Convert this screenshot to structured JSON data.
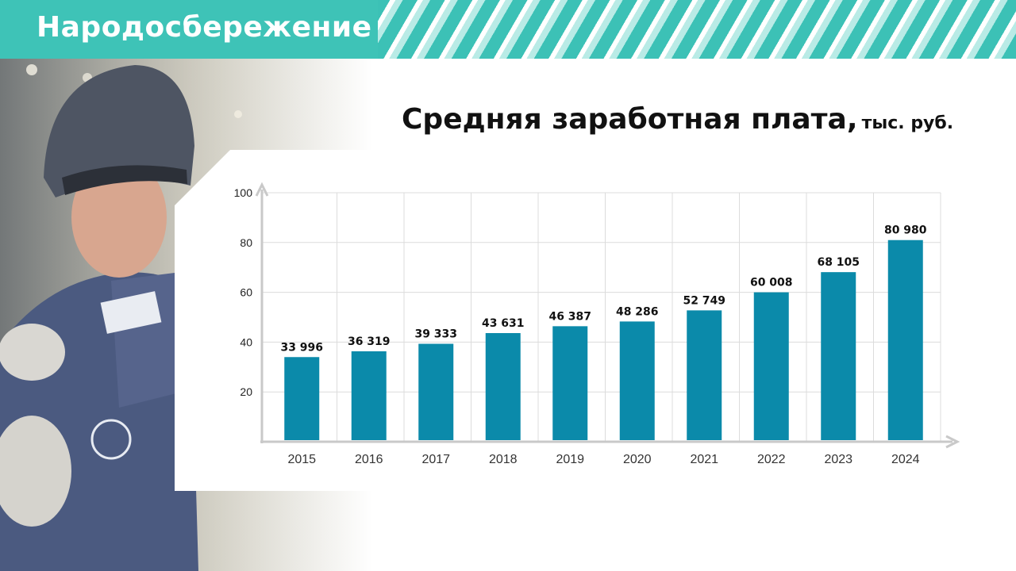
{
  "tag": "Народосбережение",
  "title": {
    "main": "Средняя заработная плата,",
    "unit": "тыс. руб."
  },
  "colors": {
    "accent": "#3ec3b7",
    "bar": "#0b8aaa"
  },
  "chart_data": {
    "type": "bar",
    "categories": [
      "2015",
      "2016",
      "2017",
      "2018",
      "2019",
      "2020",
      "2021",
      "2022",
      "2023",
      "2024"
    ],
    "values": [
      33.996,
      36.319,
      39.333,
      43.631,
      46.387,
      48.286,
      52.749,
      60.008,
      68.105,
      80.98
    ],
    "value_labels": [
      "33 996",
      "36 319",
      "39 333",
      "43 631",
      "46 387",
      "48 286",
      "52 749",
      "60 008",
      "68 105",
      "80 980"
    ],
    "y_ticks": [
      "20",
      "40",
      "60",
      "80",
      "100"
    ],
    "ylim": [
      0,
      100
    ],
    "grid": true
  }
}
